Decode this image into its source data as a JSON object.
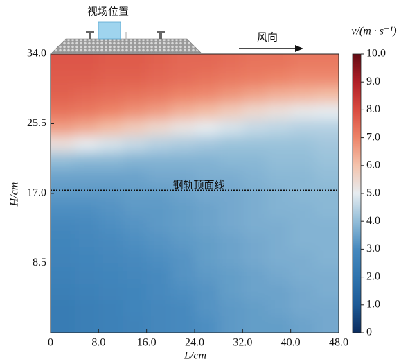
{
  "chart_data": {
    "type": "heatmap",
    "header_label": "视场位置",
    "wind_label": "风向",
    "rail_label": "钢轨顶面线",
    "rail_line_h": 17.4,
    "xlabel": "L/cm",
    "ylabel": "H/cm",
    "colorbar_label": "v/(m · s⁻¹)",
    "x": [
      2,
      6,
      10,
      14,
      18,
      22,
      26,
      30,
      34,
      38,
      42,
      46
    ],
    "y": [
      33,
      31,
      29,
      27,
      25,
      23,
      21,
      19,
      17,
      15,
      13,
      11,
      9,
      7,
      5,
      3,
      1
    ],
    "z": [
      [
        7.8,
        7.8,
        7.7,
        7.7,
        7.6,
        7.5,
        7.5,
        7.4,
        7.3,
        7.3,
        7.2,
        7.2
      ],
      [
        7.7,
        7.7,
        7.6,
        7.6,
        7.5,
        7.4,
        7.3,
        7.2,
        7.1,
        7.0,
        6.9,
        6.9
      ],
      [
        7.6,
        7.5,
        7.4,
        7.3,
        7.2,
        7.0,
        6.9,
        6.7,
        6.5,
        6.3,
        6.2,
        6.1
      ],
      [
        7.3,
        7.2,
        7.0,
        6.8,
        6.6,
        6.3,
        6.1,
        5.8,
        5.5,
        5.3,
        5.1,
        5.0
      ],
      [
        6.6,
        6.4,
        6.1,
        5.8,
        5.5,
        5.2,
        5.0,
        4.8,
        4.6,
        4.5,
        4.4,
        4.4
      ],
      [
        5.3,
        5.0,
        4.8,
        4.6,
        4.4,
        4.3,
        4.2,
        4.1,
        4.1,
        4.1,
        4.1,
        4.2
      ],
      [
        4.0,
        3.9,
        3.9,
        3.8,
        3.8,
        3.8,
        3.8,
        3.9,
        3.9,
        4.0,
        4.0,
        4.1
      ],
      [
        3.5,
        3.5,
        3.5,
        3.5,
        3.6,
        3.6,
        3.7,
        3.7,
        3.8,
        3.9,
        3.9,
        4.0
      ],
      [
        3.3,
        3.3,
        3.3,
        3.4,
        3.4,
        3.5,
        3.6,
        3.6,
        3.7,
        3.8,
        3.9,
        3.9
      ],
      [
        3.1,
        3.1,
        3.2,
        3.3,
        3.3,
        3.4,
        3.5,
        3.6,
        3.7,
        3.8,
        3.8,
        3.9
      ],
      [
        2.9,
        3.0,
        3.1,
        3.2,
        3.3,
        3.4,
        3.5,
        3.6,
        3.7,
        3.7,
        3.8,
        3.8
      ],
      [
        2.8,
        2.9,
        3.0,
        3.1,
        3.2,
        3.3,
        3.4,
        3.5,
        3.6,
        3.7,
        3.8,
        3.8
      ],
      [
        2.7,
        2.8,
        2.9,
        3.0,
        3.1,
        3.2,
        3.4,
        3.5,
        3.6,
        3.7,
        3.7,
        3.8
      ],
      [
        2.6,
        2.7,
        2.8,
        2.9,
        3.0,
        3.2,
        3.3,
        3.4,
        3.5,
        3.6,
        3.7,
        3.7
      ],
      [
        2.5,
        2.6,
        2.7,
        2.8,
        3.0,
        3.1,
        3.2,
        3.4,
        3.5,
        3.5,
        3.6,
        3.7
      ],
      [
        2.4,
        2.5,
        2.6,
        2.8,
        2.9,
        3.0,
        3.2,
        3.3,
        3.4,
        3.5,
        3.6,
        3.6
      ],
      [
        2.4,
        2.5,
        2.6,
        2.7,
        2.9,
        3.0,
        3.1,
        3.3,
        3.4,
        3.4,
        3.5,
        3.6
      ]
    ],
    "xlim": [
      0,
      48
    ],
    "ylim": [
      0,
      34
    ],
    "clim": [
      0,
      10
    ],
    "xticks": [
      0,
      {
        "value": 8,
        "label": "8.0"
      },
      {
        "value": 16,
        "label": "16.0"
      },
      {
        "value": 24,
        "label": "24.0"
      },
      {
        "value": 32,
        "label": "32.0"
      },
      {
        "value": 40,
        "label": "40.0"
      },
      {
        "value": 48,
        "label": "48.0"
      }
    ],
    "yticks": [
      8.5,
      {
        "value": 17,
        "label": "17.0"
      },
      25.5,
      {
        "value": 34,
        "label": "34.0"
      }
    ],
    "cticks": [
      0,
      {
        "value": 1,
        "label": "1.0"
      },
      {
        "value": 2,
        "label": "2.0"
      },
      {
        "value": 3,
        "label": "3.0"
      },
      {
        "value": 4,
        "label": "4.0"
      },
      {
        "value": 5,
        "label": "5.0"
      },
      {
        "value": 6,
        "label": "6.0"
      },
      {
        "value": 7,
        "label": "7.0"
      },
      {
        "value": 8,
        "label": "8.0"
      },
      {
        "value": 9,
        "label": "9.0"
      },
      {
        "value": 10,
        "label": "10.0"
      }
    ],
    "colorscale": [
      "#0b2c5e",
      "#1d5a96",
      "#2f74ae",
      "#4689be",
      "#92bdd8",
      "#e6ecf0",
      "#f4c3ac",
      "#ed8468",
      "#d94b40",
      "#b01f27",
      "#640c14"
    ]
  }
}
